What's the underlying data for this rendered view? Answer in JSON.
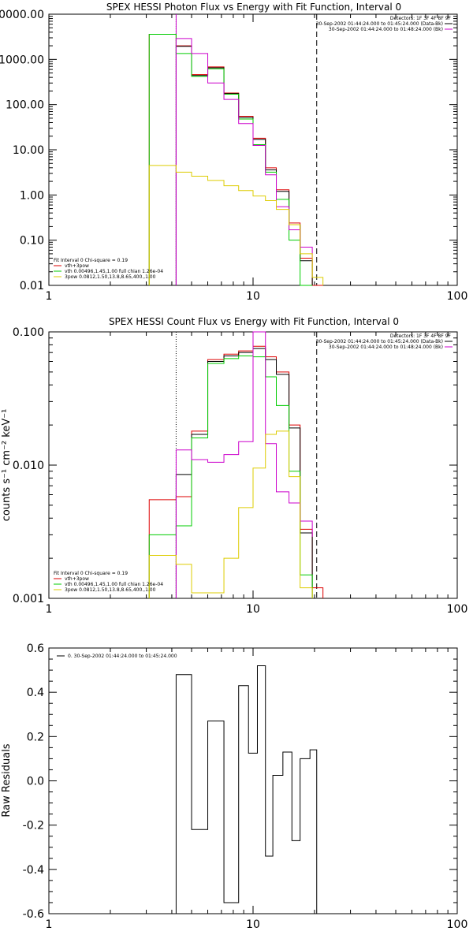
{
  "chart_data": [
    {
      "type": "line",
      "title": "SPEX HESSI Photon Flux vs Energy with Fit Function, Interval 0",
      "xlabel": "",
      "ylabel": "",
      "xscale": "log",
      "yscale": "log",
      "xlim": [
        1,
        100
      ],
      "ylim": [
        0.01,
        10000
      ],
      "x_ticks": [
        {
          "v": 1,
          "label": "1"
        },
        {
          "v": 10,
          "label": "10"
        },
        {
          "v": 100,
          "label": "100"
        }
      ],
      "y_ticks": [
        {
          "v": 10000,
          "label": "10000.00"
        },
        {
          "v": 1000,
          "label": "1000.00"
        },
        {
          "v": 100,
          "label": "100.00"
        },
        {
          "v": 10,
          "label": "10.00"
        },
        {
          "v": 1,
          "label": "1.00"
        },
        {
          "v": 0.1,
          "label": "0.10"
        },
        {
          "v": 0.01,
          "label": "0.01"
        }
      ],
      "vlines": [
        {
          "x": 4.2,
          "style": "dotted",
          "color": "#000000"
        },
        {
          "x": 4.2,
          "style": "solid",
          "color": "#cc00cc"
        },
        {
          "x": 20.5,
          "style": "dashed",
          "color": "#000000"
        }
      ],
      "legend_topright": {
        "lines": [
          "Detectors: 1F 3F 4F 8F 9F",
          "30-Sep-2002 01:44:24.000 to 01:45:24.000 (Data-Bk)",
          "30-Sep-2002 01:44:24.000 to 01:48:24.000 (Bk)"
        ],
        "colors": [
          "#000000",
          "#cc00cc"
        ]
      },
      "legend_bottomleft": {
        "header": "Fit Interval 0   Chi-square = 0.19",
        "entries": [
          {
            "label": "vth+3pow",
            "color": "#dd0000"
          },
          {
            "label": "vth 0.00496,1.45,1.00  full chian 1.26e-04",
            "color": "#00cc00"
          },
          {
            "label": "3pow 0.0812,1.50,13.8,8.65,400.,1.00",
            "color": "#ddcc00"
          }
        ]
      },
      "series": [
        {
          "color": "#dd0000",
          "edges": [
            3.1,
            4.2,
            5.0,
            6.0,
            7.2,
            8.5,
            10,
            11.5,
            13,
            15,
            17,
            19.5,
            22
          ],
          "values": [
            3600,
            2000,
            460,
            680,
            180,
            55,
            18,
            4.0,
            1.3,
            0.24,
            0.04,
            0.01
          ]
        },
        {
          "color": "#000000",
          "edges": [
            4.2,
            5.0,
            6.0,
            7.2,
            8.5,
            10,
            11.5,
            13,
            15,
            17,
            19.5
          ],
          "values": [
            1950,
            440,
            650,
            175,
            52,
            17,
            3.6,
            1.2,
            0.22,
            0.035
          ]
        },
        {
          "color": "#00cc00",
          "edges": [
            3.1,
            4.2,
            5.0,
            6.0,
            7.2,
            8.5,
            10,
            11.5,
            13,
            15,
            17,
            19.5
          ],
          "values": [
            3600,
            1350,
            420,
            620,
            170,
            48,
            13,
            3.2,
            0.8,
            0.1,
            0.01
          ]
        },
        {
          "color": "#cc00cc",
          "edges": [
            4.2,
            5.0,
            6.0,
            7.2,
            8.5,
            10,
            11.5,
            13,
            15,
            17,
            19.5
          ],
          "values": [
            2900,
            1350,
            300,
            130,
            38,
            12.5,
            2.8,
            0.55,
            0.17,
            0.07,
            0.03
          ]
        },
        {
          "color": "#ddcc00",
          "edges": [
            3.1,
            4.2,
            5.0,
            6.0,
            7.2,
            8.5,
            10,
            11.5,
            13,
            15,
            17,
            19.5,
            22
          ],
          "values": [
            4.5,
            3.2,
            2.6,
            2.1,
            1.6,
            1.25,
            0.95,
            0.75,
            0.48,
            0.22,
            0.05,
            0.015
          ]
        }
      ]
    },
    {
      "type": "line",
      "title": "SPEX HESSI Count Flux vs Energy with Fit Function, Interval 0",
      "xlabel": "",
      "ylabel": "counts s⁻¹ cm⁻² keV⁻¹",
      "xscale": "log",
      "yscale": "log",
      "xlim": [
        1,
        100
      ],
      "ylim": [
        0.001,
        0.1
      ],
      "x_ticks": [
        {
          "v": 1,
          "label": "1"
        },
        {
          "v": 10,
          "label": "10"
        },
        {
          "v": 100,
          "label": "100"
        }
      ],
      "y_ticks": [
        {
          "v": 0.1,
          "label": "0.100"
        },
        {
          "v": 0.01,
          "label": "0.010"
        },
        {
          "v": 0.001,
          "label": "0.001"
        }
      ],
      "vlines": [
        {
          "x": 4.2,
          "style": "dotted",
          "color": "#000000"
        },
        {
          "x": 20.5,
          "style": "dashed",
          "color": "#000000"
        }
      ],
      "legend_topright": {
        "lines": [
          "Detectors: 1F 3F 4F 8F 9F",
          "30-Sep-2002 01:44:24.000 to 01:45:24.000 (Data-Bk)",
          "30-Sep-2002 01:44:24.000 to 01:48:24.000 (Bk)"
        ],
        "colors": [
          "#000000",
          "#cc00cc"
        ]
      },
      "legend_bottomleft": {
        "header": "Fit Interval 0   Chi-square = 0.19",
        "entries": [
          {
            "label": "vth+3pow",
            "color": "#dd0000"
          },
          {
            "label": "vth 0.00496,1.45,1.00  full chian 1.26e-04",
            "color": "#00cc00"
          },
          {
            "label": "3pow 0.0812,1.50,13.8,8.65,400.,1.00",
            "color": "#ddcc00"
          }
        ]
      },
      "series": [
        {
          "color": "#dd0000",
          "edges": [
            3.1,
            4.2,
            5.0,
            6.0,
            7.2,
            8.5,
            10,
            11.5,
            13,
            15,
            17,
            19.5,
            22
          ],
          "values": [
            0.0055,
            0.0058,
            0.018,
            0.062,
            0.068,
            0.072,
            0.078,
            0.065,
            0.05,
            0.02,
            0.0033,
            0.0012
          ]
        },
        {
          "color": "#000000",
          "edges": [
            4.2,
            5.0,
            6.0,
            7.2,
            8.5,
            10,
            11.5,
            13,
            15,
            17,
            19.5
          ],
          "values": [
            0.0085,
            0.017,
            0.06,
            0.066,
            0.07,
            0.075,
            0.062,
            0.048,
            0.019,
            0.0031
          ]
        },
        {
          "color": "#00cc00",
          "edges": [
            3.1,
            4.2,
            5.0,
            6.0,
            7.2,
            8.5,
            10,
            11.5,
            13,
            15,
            17,
            19.5
          ],
          "values": [
            0.003,
            0.0035,
            0.016,
            0.058,
            0.063,
            0.066,
            0.065,
            0.046,
            0.028,
            0.009,
            0.0015
          ]
        },
        {
          "color": "#cc00cc",
          "edges": [
            4.2,
            5.0,
            6.0,
            7.2,
            8.5,
            10,
            11.5,
            13,
            15,
            17,
            19.5
          ],
          "values": [
            0.013,
            0.011,
            0.0105,
            0.012,
            0.015,
            0.1,
            0.0145,
            0.0063,
            0.0052,
            0.0038,
            0.0029
          ]
        },
        {
          "color": "#ddcc00",
          "edges": [
            3.1,
            4.2,
            5.0,
            6.0,
            7.2,
            8.5,
            10,
            11.5,
            13,
            15,
            17,
            19.5
          ],
          "values": [
            0.0021,
            0.0018,
            0.0011,
            0.0011,
            0.002,
            0.0048,
            0.0095,
            0.017,
            0.018,
            0.0082,
            0.0012
          ]
        }
      ]
    },
    {
      "type": "line",
      "title": "",
      "xlabel": "",
      "ylabel": "Raw Residuals",
      "xscale": "log",
      "yscale": "linear",
      "xlim": [
        1,
        100
      ],
      "ylim": [
        -0.6,
        0.6
      ],
      "x_ticks": [
        {
          "v": 1,
          "label": "1"
        },
        {
          "v": 10,
          "label": "10"
        },
        {
          "v": 100,
          "label": "100"
        }
      ],
      "y_ticks": [
        {
          "v": 0.6,
          "label": "0.6"
        },
        {
          "v": 0.4,
          "label": "0.4"
        },
        {
          "v": 0.2,
          "label": "0.2"
        },
        {
          "v": 0.0,
          "label": "0.0"
        },
        {
          "v": -0.2,
          "label": "-0.2"
        },
        {
          "v": -0.4,
          "label": "-0.4"
        },
        {
          "v": -0.6,
          "label": "-0.6"
        }
      ],
      "legend": {
        "label": "0. 30-Sep-2002 01:44:24.000 to 01:45:24.000",
        "color": "#000000"
      },
      "series": [
        {
          "color": "#000000",
          "edges": [
            4.2,
            5.0,
            6.0,
            7.2,
            8.5,
            9.5,
            10.5,
            11.5,
            12.5,
            14.0,
            15.5,
            17.0,
            19.0,
            20.5
          ],
          "values": [
            0.48,
            -0.22,
            0.27,
            -0.55,
            0.43,
            0.125,
            0.52,
            -0.34,
            0.025,
            0.13,
            -0.27,
            0.1,
            0.14
          ],
          "baseline": -0.6
        }
      ]
    }
  ]
}
